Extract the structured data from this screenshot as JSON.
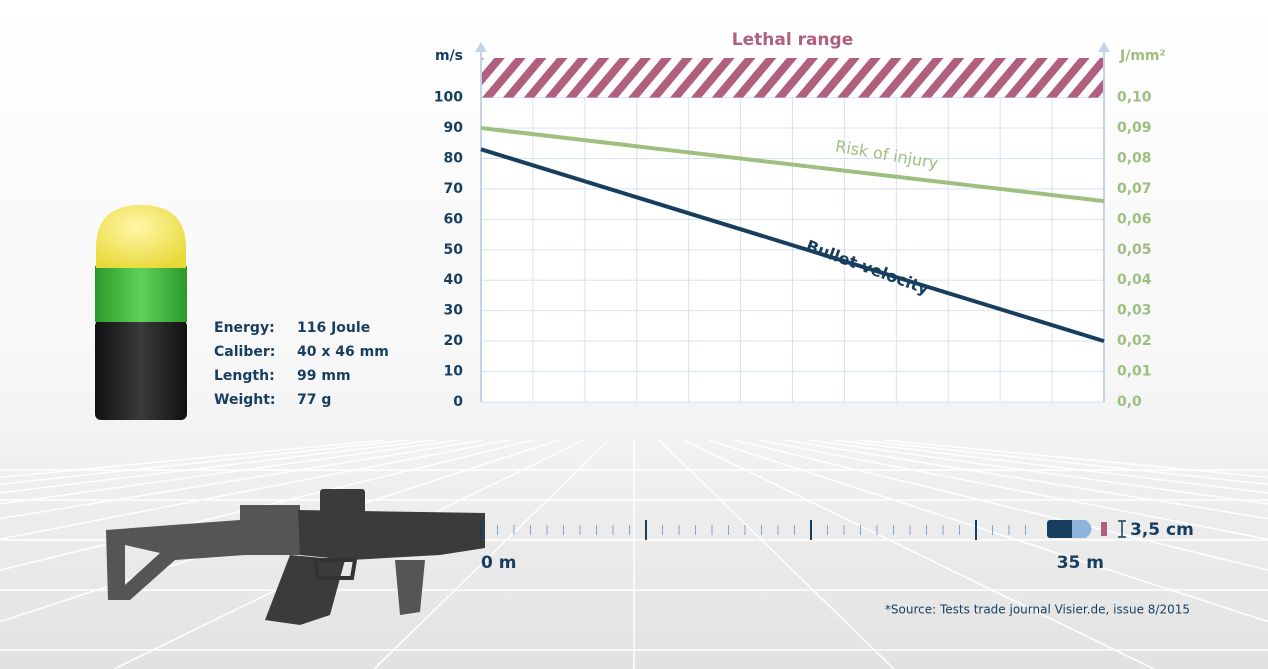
{
  "chart_data": {
    "type": "line",
    "lethal_range": {
      "label": "Lethal range",
      "from": 100,
      "to": 113,
      "color": "#b0607e"
    },
    "y_label": "m/s",
    "y2_label": "J/mm²",
    "x": [
      0,
      35
    ],
    "xlim": [
      0,
      35
    ],
    "xticks": [
      {
        "value": 0,
        "label": "0 m"
      },
      {
        "value": 35,
        "label": "35 m"
      }
    ],
    "ylim": [
      0,
      113
    ],
    "yticks": [
      0,
      10,
      20,
      30,
      40,
      50,
      60,
      70,
      80,
      90,
      100
    ],
    "y2lim": [
      0,
      0.113
    ],
    "y2ticks": [
      {
        "value": 0,
        "label": "0,0"
      },
      {
        "value": 0.01,
        "label": "0,01"
      },
      {
        "value": 0.02,
        "label": "0,02"
      },
      {
        "value": 0.03,
        "label": "0,03"
      },
      {
        "value": 0.04,
        "label": "0,04"
      },
      {
        "value": 0.05,
        "label": "0,05"
      },
      {
        "value": 0.06,
        "label": "0,06"
      },
      {
        "value": 0.07,
        "label": "0,07"
      },
      {
        "value": 0.08,
        "label": "0,08"
      },
      {
        "value": 0.09,
        "label": "0,09"
      },
      {
        "value": 0.1,
        "label": "0,10"
      }
    ],
    "grid": true,
    "series": [
      {
        "name": "Bullet velocity",
        "color": "#173e5f",
        "values": [
          83,
          20
        ]
      },
      {
        "name": "Risk of injury",
        "color": "#9dbf7f",
        "values": [
          0.09,
          0.066
        ],
        "axis": "y2"
      }
    ]
  },
  "specs": [
    {
      "label": "Energy:",
      "value": "116 Joule"
    },
    {
      "label": "Caliber:",
      "value": "40 x 46 mm"
    },
    {
      "label": "Length:",
      "value": "99 mm"
    },
    {
      "label": "Weight:",
      "value": "77 g"
    }
  ],
  "projectile_size": "3,5 cm",
  "source": "*Source: Tests trade journal Visier.de, issue 8/2015"
}
